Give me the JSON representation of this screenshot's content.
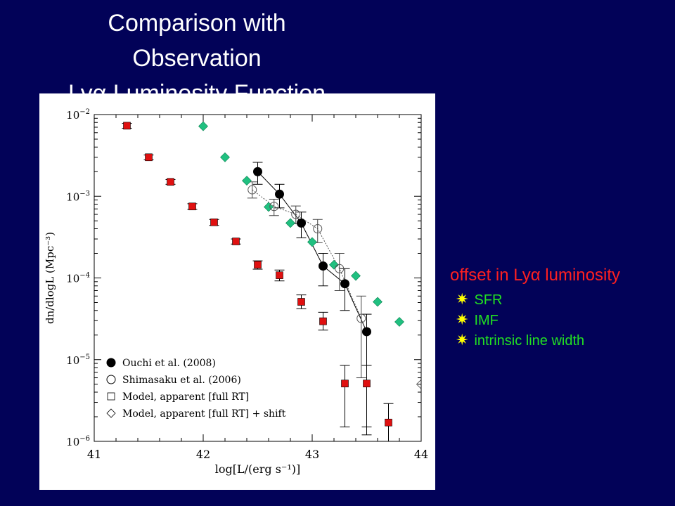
{
  "slide": {
    "title_lines": [
      "Comparison with",
      "Observation",
      "Lyα Luminosity Function"
    ],
    "notes_heading": "offset in Lyα luminosity",
    "bullets": [
      "SFR",
      "IMF",
      "intrinsic line width"
    ],
    "bullet_icon": "star-bullet-icon",
    "colors": {
      "background": "#020258",
      "title": "#ffffff",
      "notes_heading": "#ff2020",
      "bullets": "#22e022",
      "bullet_star": "#ffff00"
    }
  },
  "chart_data": {
    "type": "scatter",
    "xlabel": "log[L/(erg s⁻¹)]",
    "ylabel": "dn/dlogL (Mpc⁻³)",
    "xlim": [
      41,
      44
    ],
    "ylim_log10": [
      -6,
      -2
    ],
    "y_scale": "log",
    "xticks": [
      41,
      42,
      43,
      44
    ],
    "yticks": [
      {
        "exp": -2,
        "base": "10",
        "sup": "−2"
      },
      {
        "exp": -3,
        "base": "10",
        "sup": "−3"
      },
      {
        "exp": -4,
        "base": "10",
        "sup": "−4"
      },
      {
        "exp": -5,
        "base": "10",
        "sup": "−5"
      },
      {
        "exp": -6,
        "base": "10",
        "sup": "−6"
      }
    ],
    "legend_position": "bottom-left",
    "series": [
      {
        "name": "Ouchi et al. (2008)",
        "marker": "filled-circle",
        "color": "#000000",
        "line": "solid",
        "x": [
          42.5,
          42.7,
          42.9,
          43.1,
          43.3,
          43.5
        ],
        "y": [
          0.002,
          0.00106,
          0.00047,
          0.00014,
          8.5e-05,
          2.2e-05
        ],
        "err_low": [
          0.0014,
          0.00072,
          0.00031,
          8e-05,
          4e-05,
          1.2e-06
        ],
        "err_high": [
          0.0026,
          0.0014,
          0.00064,
          0.0002,
          0.00013,
          3.6e-05
        ]
      },
      {
        "name": "Shimasaku et al. (2006)",
        "marker": "open-circle",
        "color": "#555555",
        "line": "dotted",
        "x": [
          42.45,
          42.65,
          42.85,
          43.05,
          43.25,
          43.45
        ],
        "y": [
          0.0012,
          0.00075,
          0.0006,
          0.0004,
          0.00013,
          3.2e-05
        ],
        "err_low": [
          0.00095,
          0.00058,
          0.00046,
          0.00027,
          7e-05,
          6e-06
        ],
        "err_high": [
          0.0015,
          0.00092,
          0.00076,
          0.00052,
          0.0002,
          6e-05
        ]
      },
      {
        "name": "Model, apparent [full RT]",
        "marker": "open-square",
        "fill": "#e01010",
        "color": "#000000",
        "line": "none",
        "x": [
          41.3,
          41.5,
          41.7,
          41.9,
          42.1,
          42.3,
          42.5,
          42.7,
          42.9,
          43.1,
          43.3,
          43.5,
          43.7
        ],
        "y": [
          0.0073,
          0.003,
          0.0015,
          0.00075,
          0.00048,
          0.00028,
          0.000145,
          0.000108,
          5.1e-05,
          2.95e-05,
          5.1e-06,
          5.1e-06,
          1.7e-06
        ],
        "err_low": [
          0.0068,
          0.0028,
          0.0014,
          0.00069,
          0.00044,
          0.00026,
          0.000128,
          9.2e-05,
          4.2e-05,
          2.3e-05,
          1.5e-06,
          1.5e-06,
          6e-07
        ],
        "err_high": [
          0.0078,
          0.0032,
          0.0016,
          0.00081,
          0.00052,
          0.0003,
          0.000162,
          0.000125,
          6.2e-05,
          3.8e-05,
          8.5e-06,
          8.5e-06,
          2.9e-06
        ]
      },
      {
        "name": "Model, apparent [full RT] + shift",
        "marker": "open-diamond",
        "fill": "#20c080",
        "color": "#000000",
        "line": "none",
        "x": [
          42.0,
          42.2,
          42.4,
          42.6,
          42.8,
          43.0,
          43.2,
          43.4,
          43.6,
          43.8,
          44.0
        ],
        "y": [
          0.0072,
          0.003,
          0.00155,
          0.00074,
          0.00047,
          0.000275,
          0.000145,
          0.000106,
          5.1e-05,
          2.9e-05,
          5e-06
        ],
        "partially_visible": [
          false,
          false,
          false,
          false,
          false,
          false,
          false,
          false,
          false,
          false,
          true
        ]
      }
    ]
  }
}
